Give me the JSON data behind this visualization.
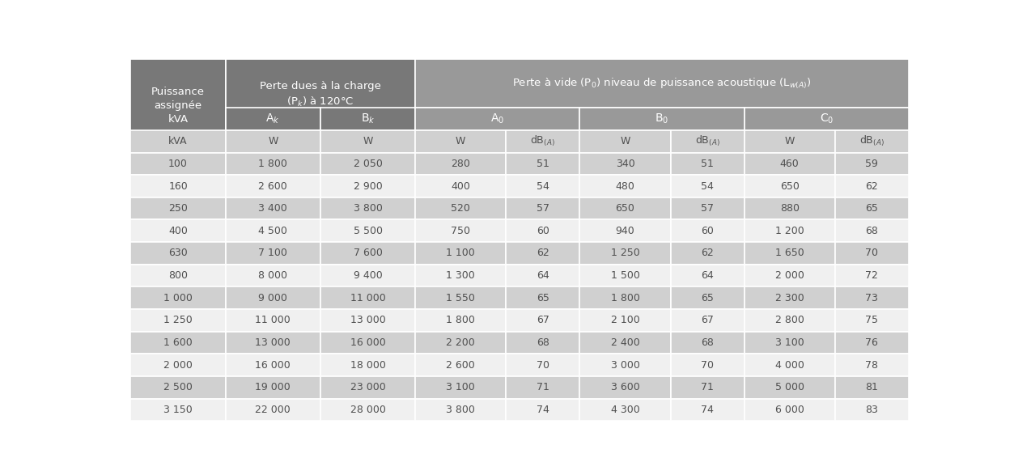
{
  "rows": [
    [
      "100",
      "1 800",
      "2 050",
      "280",
      "51",
      "340",
      "51",
      "460",
      "59"
    ],
    [
      "160",
      "2 600",
      "2 900",
      "400",
      "54",
      "480",
      "54",
      "650",
      "62"
    ],
    [
      "250",
      "3 400",
      "3 800",
      "520",
      "57",
      "650",
      "57",
      "880",
      "65"
    ],
    [
      "400",
      "4 500",
      "5 500",
      "750",
      "60",
      "940",
      "60",
      "1 200",
      "68"
    ],
    [
      "630",
      "7 100",
      "7 600",
      "1 100",
      "62",
      "1 250",
      "62",
      "1 650",
      "70"
    ],
    [
      "800",
      "8 000",
      "9 400",
      "1 300",
      "64",
      "1 500",
      "64",
      "2 000",
      "72"
    ],
    [
      "1 000",
      "9 000",
      "11 000",
      "1 550",
      "65",
      "1 800",
      "65",
      "2 300",
      "73"
    ],
    [
      "1 250",
      "11 000",
      "13 000",
      "1 800",
      "67",
      "2 100",
      "67",
      "2 800",
      "75"
    ],
    [
      "1 600",
      "13 000",
      "16 000",
      "2 200",
      "68",
      "2 400",
      "68",
      "3 100",
      "76"
    ],
    [
      "2 000",
      "16 000",
      "18 000",
      "2 600",
      "70",
      "3 000",
      "70",
      "4 000",
      "78"
    ],
    [
      "2 500",
      "19 000",
      "23 000",
      "3 100",
      "71",
      "3 600",
      "71",
      "5 000",
      "81"
    ],
    [
      "3 150",
      "22 000",
      "28 000",
      "3 800",
      "74",
      "4 300",
      "74",
      "6 000",
      "83"
    ]
  ],
  "color_header_dark": "#787878",
  "color_header_mid": "#999999",
  "color_row_light": "#d0d0d0",
  "color_row_white": "#f0f0f0",
  "color_unit_row": "#c8c8c8",
  "color_text_header": "#ffffff",
  "color_text_body": "#505050",
  "color_border": "#ffffff",
  "figsize": [
    12.53,
    5.87
  ],
  "dpi": 100
}
